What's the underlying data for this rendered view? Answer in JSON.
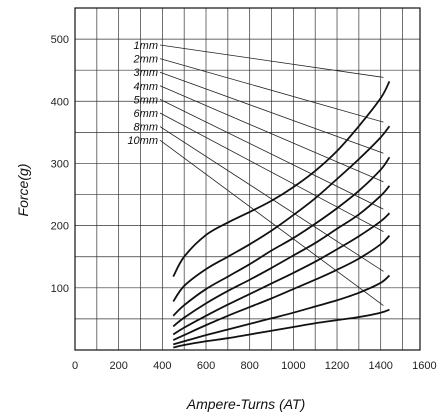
{
  "chart_data": {
    "type": "line",
    "title": "",
    "xlabel": "Ampere-Turns (AT)",
    "ylabel": "Force(g)",
    "xlim": [
      0,
      1600
    ],
    "ylim": [
      0,
      550
    ],
    "x_ticks": [
      "0",
      "200",
      "400",
      "600",
      "800",
      "1000",
      "1200",
      "1400",
      "1600"
    ],
    "y_ticks": [
      "100",
      "200",
      "300",
      "400",
      "500"
    ],
    "grid": true,
    "legend_position": "top-left, with leader lines to curve ends",
    "series": [
      {
        "name": "1mm",
        "x": [
          450,
          500,
          600,
          700,
          800,
          900,
          1000,
          1100,
          1200,
          1300,
          1400,
          1440
        ],
        "y": [
          118,
          150,
          185,
          205,
          222,
          240,
          262,
          288,
          320,
          360,
          405,
          432
        ]
      },
      {
        "name": "2mm",
        "x": [
          450,
          500,
          600,
          700,
          800,
          900,
          1000,
          1100,
          1200,
          1300,
          1400,
          1440
        ],
        "y": [
          78,
          103,
          130,
          150,
          170,
          192,
          217,
          244,
          275,
          307,
          342,
          360
        ]
      },
      {
        "name": "3mm",
        "x": [
          450,
          500,
          600,
          700,
          800,
          900,
          1000,
          1100,
          1200,
          1300,
          1400,
          1440
        ],
        "y": [
          55,
          72,
          98,
          118,
          138,
          160,
          180,
          203,
          228,
          256,
          290,
          310
        ]
      },
      {
        "name": "4mm",
        "x": [
          450,
          500,
          600,
          700,
          800,
          900,
          1000,
          1100,
          1200,
          1300,
          1400,
          1440
        ],
        "y": [
          38,
          52,
          75,
          95,
          113,
          132,
          152,
          172,
          195,
          218,
          248,
          264
        ]
      },
      {
        "name": "5mm",
        "x": [
          450,
          500,
          600,
          700,
          800,
          900,
          1000,
          1100,
          1200,
          1300,
          1400,
          1440
        ],
        "y": [
          25,
          36,
          55,
          73,
          90,
          107,
          124,
          142,
          162,
          183,
          207,
          220
        ]
      },
      {
        "name": "6mm",
        "x": [
          450,
          500,
          600,
          700,
          800,
          900,
          1000,
          1100,
          1200,
          1300,
          1400,
          1440
        ],
        "y": [
          16,
          24,
          40,
          55,
          69,
          83,
          98,
          113,
          129,
          147,
          170,
          184
        ]
      },
      {
        "name": "8mm",
        "x": [
          450,
          500,
          600,
          700,
          800,
          900,
          1000,
          1100,
          1200,
          1300,
          1400,
          1440
        ],
        "y": [
          9,
          14,
          24,
          33,
          42,
          51,
          60,
          70,
          80,
          92,
          108,
          120
        ]
      },
      {
        "name": "10mm",
        "x": [
          450,
          500,
          600,
          700,
          800,
          900,
          1000,
          1100,
          1200,
          1300,
          1400,
          1440
        ],
        "y": [
          4,
          8,
          14,
          19,
          25,
          31,
          37,
          43,
          48,
          53,
          60,
          65
        ]
      }
    ]
  }
}
